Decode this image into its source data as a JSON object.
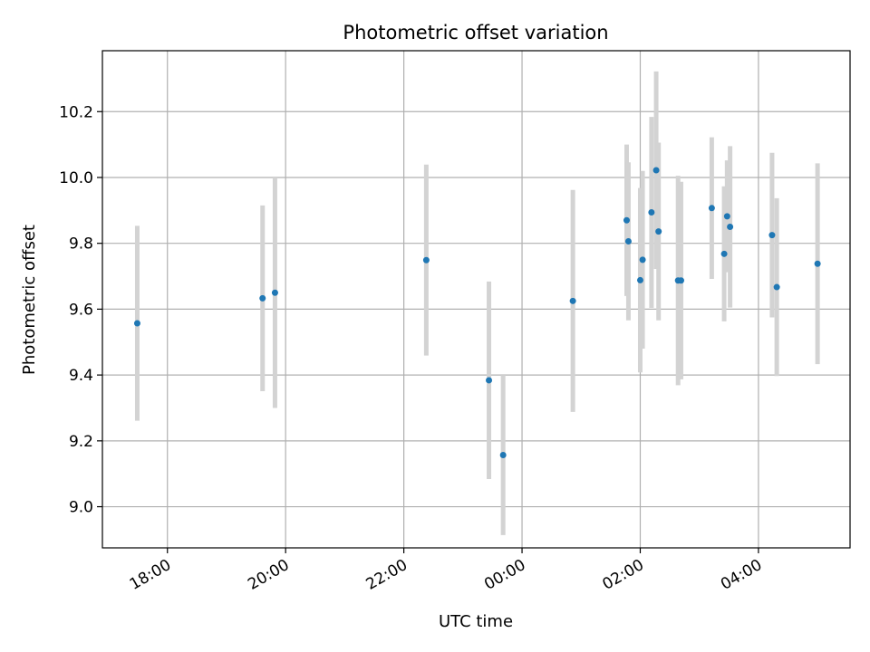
{
  "chart_data": {
    "type": "scatter",
    "title": "Photometric offset variation",
    "xlabel": "UTC time",
    "ylabel": "Photometric offset",
    "grid": true,
    "xlim_hours": [
      16.9,
      29.55
    ],
    "ylim": [
      8.875,
      10.385
    ],
    "x_ticks": [
      {
        "hour": 18,
        "label": "18:00"
      },
      {
        "hour": 20,
        "label": "20:00"
      },
      {
        "hour": 22,
        "label": "22:00"
      },
      {
        "hour": 24,
        "label": "00:00"
      },
      {
        "hour": 26,
        "label": "02:00"
      },
      {
        "hour": 28,
        "label": "04:00"
      }
    ],
    "y_ticks": [
      {
        "value": 9.0,
        "label": "9.0"
      },
      {
        "value": 9.2,
        "label": "9.2"
      },
      {
        "value": 9.4,
        "label": "9.4"
      },
      {
        "value": 9.6,
        "label": "9.6"
      },
      {
        "value": 9.8,
        "label": "9.8"
      },
      {
        "value": 10.0,
        "label": "10.0"
      },
      {
        "value": 10.2,
        "label": "10.2"
      }
    ],
    "point_color": "#1f77b4",
    "errorbar_color": "#d3d3d3",
    "points": [
      {
        "hour": 17.49,
        "y": 9.557,
        "err": 0.296
      },
      {
        "hour": 19.61,
        "y": 9.633,
        "err": 0.282
      },
      {
        "hour": 19.82,
        "y": 9.65,
        "err": 0.35
      },
      {
        "hour": 22.38,
        "y": 9.749,
        "err": 0.29
      },
      {
        "hour": 23.44,
        "y": 9.384,
        "err": 0.3
      },
      {
        "hour": 23.68,
        "y": 9.157,
        "err": 0.243
      },
      {
        "hour": 24.86,
        "y": 9.625,
        "err": 0.337
      },
      {
        "hour": 25.77,
        "y": 9.87,
        "err": 0.23
      },
      {
        "hour": 25.8,
        "y": 9.806,
        "err": 0.24
      },
      {
        "hour": 26.0,
        "y": 9.688,
        "err": 0.28
      },
      {
        "hour": 26.04,
        "y": 9.75,
        "err": 0.27
      },
      {
        "hour": 26.19,
        "y": 9.894,
        "err": 0.29
      },
      {
        "hour": 26.27,
        "y": 10.022,
        "err": 0.3
      },
      {
        "hour": 26.31,
        "y": 9.836,
        "err": 0.27
      },
      {
        "hour": 26.64,
        "y": 9.687,
        "err": 0.318
      },
      {
        "hour": 26.69,
        "y": 9.687,
        "err": 0.3
      },
      {
        "hour": 27.21,
        "y": 9.907,
        "err": 0.215
      },
      {
        "hour": 27.42,
        "y": 9.768,
        "err": 0.205
      },
      {
        "hour": 27.47,
        "y": 9.882,
        "err": 0.17
      },
      {
        "hour": 27.52,
        "y": 9.85,
        "err": 0.245
      },
      {
        "hour": 28.23,
        "y": 9.825,
        "err": 0.25
      },
      {
        "hour": 28.31,
        "y": 9.667,
        "err": 0.27
      },
      {
        "hour": 29.0,
        "y": 9.738,
        "err": 0.305
      }
    ]
  }
}
